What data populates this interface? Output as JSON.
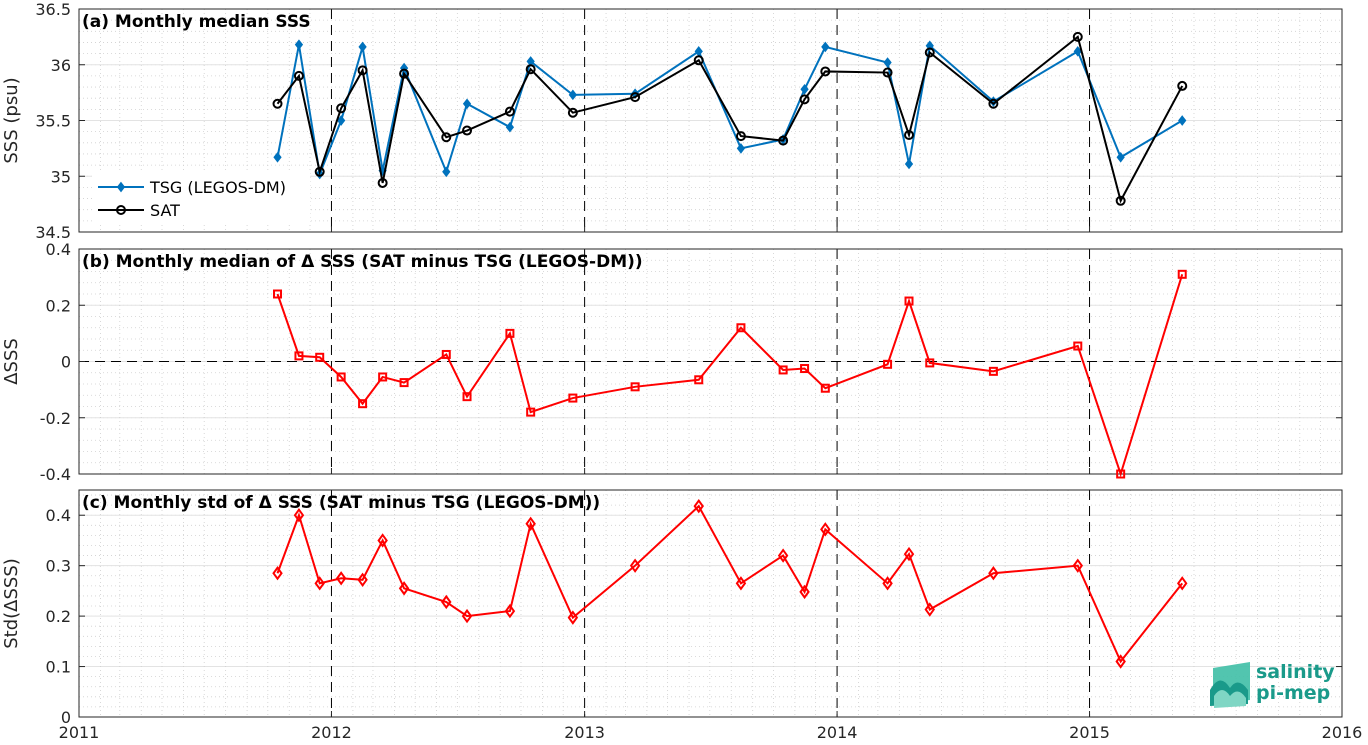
{
  "colors": {
    "tsg": "#0072BD",
    "sat": "#000000",
    "delta": "#FF0000",
    "logo": "#1a9a8a"
  },
  "logo": {
    "line1": "salinity",
    "line2": "pi-mep"
  },
  "chart_data": [
    {
      "id": "a",
      "type": "line",
      "title": "(a) Monthly median SSS",
      "ylabel": "SSS (psu)",
      "xlabel": "",
      "xlim": [
        "2011-01-01",
        "2016-01-01"
      ],
      "ylim": [
        34.5,
        36.5
      ],
      "yticks": [
        34.5,
        35,
        35.5,
        36,
        36.5
      ],
      "ytick_labels": [
        "34.5",
        "35",
        "35.5",
        "36",
        "36.5"
      ],
      "xtick_labels": [],
      "grid": true,
      "legend": "left",
      "x": [
        "2011-10-15",
        "2011-11-15",
        "2011-12-15",
        "2012-01-15",
        "2012-02-15",
        "2012-03-15",
        "2012-04-15",
        "2012-06-15",
        "2012-07-15",
        "2012-09-15",
        "2012-10-15",
        "2012-12-15",
        "2013-03-15",
        "2013-06-15",
        "2013-08-15",
        "2013-10-15",
        "2013-11-15",
        "2013-12-15",
        "2014-03-15",
        "2014-04-15",
        "2014-05-15",
        "2014-08-15",
        "2014-12-15",
        "2015-02-15",
        "2015-05-15"
      ],
      "series": [
        {
          "name": "TSG (LEGOS-DM)",
          "marker": "diamond",
          "values": [
            35.17,
            36.18,
            35.02,
            35.5,
            36.16,
            35.05,
            35.97,
            35.04,
            35.65,
            35.44,
            36.03,
            35.73,
            35.74,
            36.12,
            35.25,
            35.33,
            35.78,
            36.16,
            36.02,
            35.11,
            36.17,
            35.67,
            36.12,
            35.17,
            35.5
          ]
        },
        {
          "name": "SAT",
          "marker": "circle",
          "values": [
            35.65,
            35.9,
            35.04,
            35.61,
            35.95,
            34.94,
            35.92,
            35.35,
            35.41,
            35.58,
            35.96,
            35.57,
            35.71,
            36.04,
            35.36,
            35.32,
            35.69,
            35.94,
            35.93,
            35.37,
            36.11,
            35.65,
            36.25,
            34.78,
            35.81
          ]
        }
      ]
    },
    {
      "id": "b",
      "type": "line",
      "title": "(b) Monthly median of Δ SSS (SAT minus TSG (LEGOS-DM))",
      "ylabel": "ΔSSS",
      "xlabel": "",
      "xlim": [
        "2011-01-01",
        "2016-01-01"
      ],
      "ylim": [
        -0.4,
        0.4
      ],
      "yticks": [
        -0.4,
        -0.2,
        0,
        0.2,
        0.4
      ],
      "ytick_labels": [
        "-0.4",
        "-0.2",
        "0",
        "0.2",
        "0.4"
      ],
      "xtick_labels": [],
      "grid": true,
      "zero_line": true,
      "x": [
        "2011-10-15",
        "2011-11-15",
        "2011-12-15",
        "2012-01-15",
        "2012-02-15",
        "2012-03-15",
        "2012-04-15",
        "2012-06-15",
        "2012-07-15",
        "2012-09-15",
        "2012-10-15",
        "2012-12-15",
        "2013-03-15",
        "2013-06-15",
        "2013-08-15",
        "2013-10-15",
        "2013-11-15",
        "2013-12-15",
        "2014-03-15",
        "2014-04-15",
        "2014-05-15",
        "2014-08-15",
        "2014-12-15",
        "2015-02-15",
        "2015-05-15"
      ],
      "series": [
        {
          "name": "",
          "marker": "square",
          "values": [
            0.24,
            0.02,
            0.015,
            -0.055,
            -0.15,
            -0.055,
            -0.075,
            0.025,
            -0.125,
            0.1,
            -0.18,
            -0.13,
            -0.09,
            -0.065,
            0.12,
            -0.03,
            -0.025,
            -0.095,
            -0.01,
            0.215,
            -0.005,
            -0.035,
            0.055,
            -0.4,
            0.31
          ]
        }
      ]
    },
    {
      "id": "c",
      "type": "line",
      "title": "(c) Monthly std of Δ SSS (SAT minus TSG (LEGOS-DM))",
      "ylabel": "Std(ΔSSS)",
      "xlabel": "",
      "xlim": [
        "2011-01-01",
        "2016-01-01"
      ],
      "ylim": [
        0,
        0.45
      ],
      "yticks": [
        0,
        0.1,
        0.2,
        0.3,
        0.4
      ],
      "ytick_labels": [
        "0",
        "0.1",
        "0.2",
        "0.3",
        "0.4"
      ],
      "xticks": [
        "2011-01-01",
        "2012-01-01",
        "2013-01-01",
        "2014-01-01",
        "2015-01-01",
        "2016-01-01"
      ],
      "xtick_labels": [
        "2011",
        "2012",
        "2013",
        "2014",
        "2015",
        "2016"
      ],
      "grid": true,
      "x": [
        "2011-10-15",
        "2011-11-15",
        "2011-12-15",
        "2012-01-15",
        "2012-02-15",
        "2012-03-15",
        "2012-04-15",
        "2012-06-15",
        "2012-07-15",
        "2012-09-15",
        "2012-10-15",
        "2012-12-15",
        "2013-03-15",
        "2013-06-15",
        "2013-08-15",
        "2013-10-15",
        "2013-11-15",
        "2013-12-15",
        "2014-03-15",
        "2014-04-15",
        "2014-05-15",
        "2014-08-15",
        "2014-12-15",
        "2015-02-15",
        "2015-05-15"
      ],
      "series": [
        {
          "name": "",
          "marker": "diamond-open",
          "values": [
            0.285,
            0.4,
            0.265,
            0.275,
            0.272,
            0.35,
            0.255,
            0.228,
            0.2,
            0.21,
            0.383,
            0.197,
            0.3,
            0.418,
            0.265,
            0.32,
            0.248,
            0.372,
            0.265,
            0.323,
            0.213,
            0.285,
            0.3,
            0.11,
            0.265
          ]
        }
      ]
    }
  ]
}
